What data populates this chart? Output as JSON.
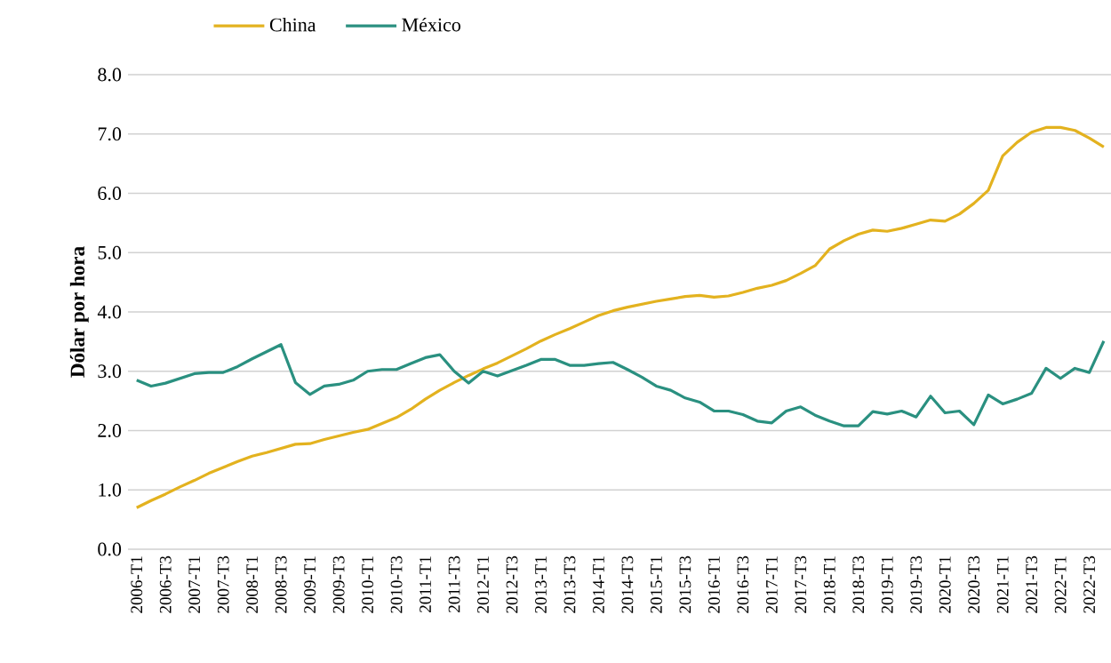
{
  "chart_data": {
    "type": "line",
    "ylabel": "Dólar por hora",
    "categories": [
      "2006-T1",
      null,
      "2006-T3",
      null,
      "2007-T1",
      null,
      "2007-T3",
      null,
      "2008-T1",
      null,
      "2008-T3",
      null,
      "2009-T1",
      null,
      "2009-T3",
      null,
      "2010-T1",
      null,
      "2010-T3",
      null,
      "2011-T1",
      null,
      "2011-T3",
      null,
      "2012-T1",
      null,
      "2012-T3",
      null,
      "2013-T1",
      null,
      "2013-T3",
      null,
      "2014-T1",
      null,
      "2014-T3",
      null,
      "2015-T1",
      null,
      "2015-T3",
      null,
      "2016-T1",
      null,
      "2016-T3",
      null,
      "2017-T1",
      null,
      "2017-T3",
      null,
      "2018-T1",
      null,
      "2018-T3",
      null,
      "2019-T1",
      null,
      "2019-T3",
      null,
      "2020-T1",
      null,
      "2020-T3",
      null,
      "2021-T1",
      null,
      "2021-T3",
      null,
      "2022-T1",
      null,
      "2022-T3",
      null
    ],
    "series": [
      {
        "name": "China",
        "color": "#e3b21f",
        "values": [
          0.7,
          0.82,
          0.93,
          1.05,
          1.16,
          1.28,
          1.38,
          1.48,
          1.57,
          1.63,
          1.7,
          1.77,
          1.78,
          1.85,
          1.91,
          1.97,
          2.02,
          2.12,
          2.22,
          2.36,
          2.53,
          2.68,
          2.81,
          2.93,
          3.04,
          3.14,
          3.26,
          3.38,
          3.51,
          3.62,
          3.72,
          3.83,
          3.94,
          4.02,
          4.08,
          4.13,
          4.18,
          4.22,
          4.26,
          4.28,
          4.25,
          4.27,
          4.33,
          4.4,
          4.45,
          4.53,
          4.65,
          4.78,
          5.06,
          5.2,
          5.31,
          5.38,
          5.36,
          5.41,
          5.48,
          5.55,
          5.53,
          5.65,
          5.83,
          6.05,
          6.63,
          6.86,
          7.03,
          7.11,
          7.11,
          7.06,
          6.93,
          6.78
        ]
      },
      {
        "name": "México",
        "color": "#2a9080",
        "values": [
          2.85,
          2.75,
          2.8,
          2.88,
          2.96,
          2.98,
          2.98,
          3.08,
          3.21,
          3.33,
          3.45,
          2.81,
          2.61,
          2.75,
          2.78,
          2.85,
          3.0,
          3.03,
          3.03,
          3.13,
          3.23,
          3.28,
          3.0,
          2.8,
          3.0,
          2.92,
          3.01,
          3.1,
          3.2,
          3.2,
          3.1,
          3.1,
          3.13,
          3.15,
          3.03,
          2.9,
          2.75,
          2.68,
          2.55,
          2.48,
          2.33,
          2.33,
          2.27,
          2.16,
          2.13,
          2.33,
          2.4,
          2.26,
          2.16,
          2.08,
          2.08,
          2.32,
          2.28,
          2.33,
          2.23,
          2.58,
          2.3,
          2.33,
          2.1,
          2.6,
          2.45,
          2.53,
          2.63,
          3.05,
          2.88,
          3.05,
          2.98,
          3.51
        ]
      }
    ],
    "ylim": [
      0,
      8
    ],
    "yticks": [
      {
        "value": 0,
        "label": "0.0"
      },
      {
        "value": 1,
        "label": "1.0"
      },
      {
        "value": 2,
        "label": "2.0"
      },
      {
        "value": 3,
        "label": "3.0"
      },
      {
        "value": 4,
        "label": "4.0"
      },
      {
        "value": 5,
        "label": "5.0"
      },
      {
        "value": 6,
        "label": "6.0"
      },
      {
        "value": 7,
        "label": "7.0"
      },
      {
        "value": 8,
        "label": "8.0"
      }
    ],
    "grid": "y",
    "legend": "top left",
    "marker": "none",
    "line_style": "solid"
  }
}
